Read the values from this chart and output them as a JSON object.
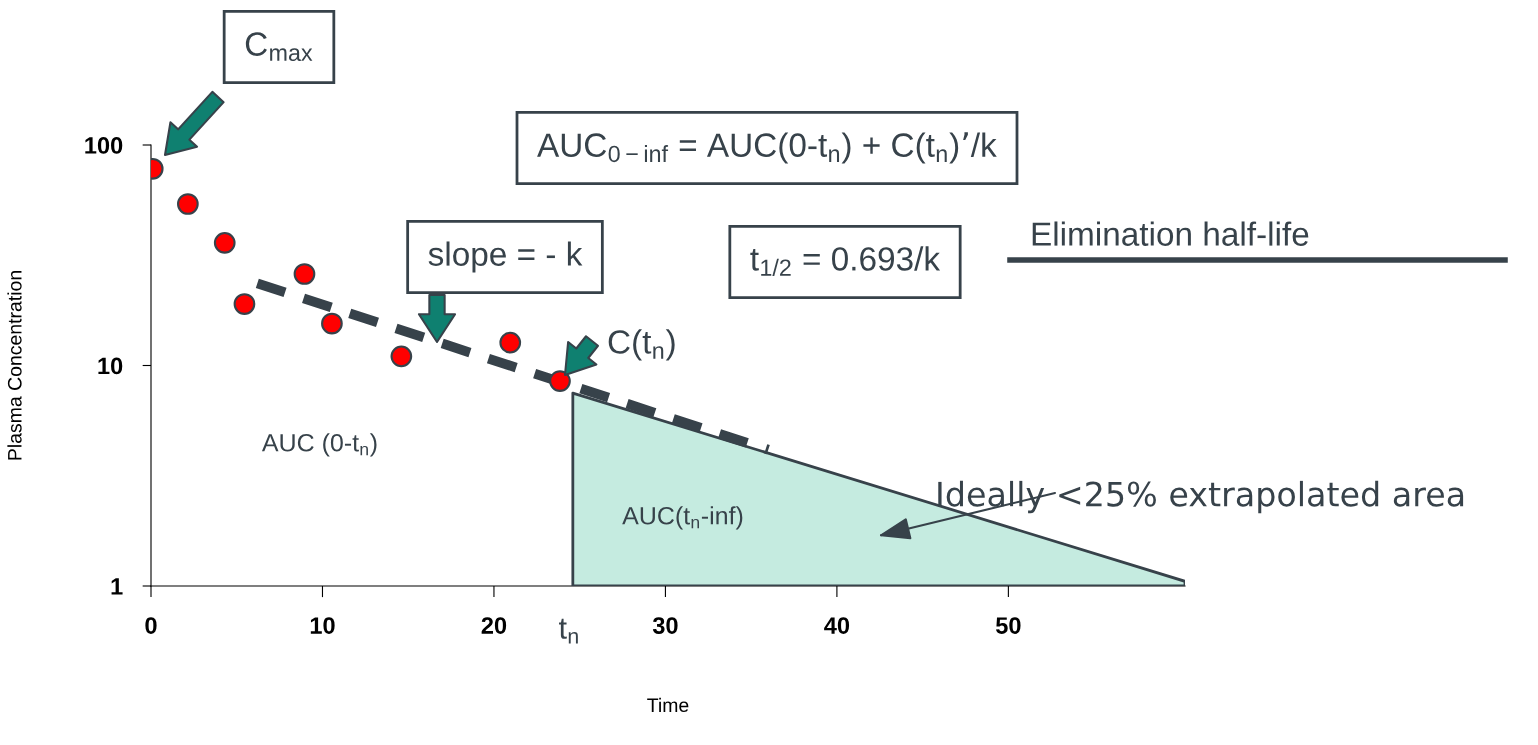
{
  "chart_data": {
    "type": "scatter",
    "xlabel": "Time",
    "ylabel": "Plasma Concentration",
    "xlim": [
      0,
      60.3
    ],
    "ylim": [
      1,
      100
    ],
    "log": "y",
    "xticks": [
      0,
      10,
      20,
      {
        "value": 24.4,
        "label": "t$_{n}$"
      },
      30,
      40,
      50
    ],
    "yticks": [
      1,
      10,
      100
    ],
    "grid": false,
    "series": [
      {
        "color": "#ff0000",
        "marker": "circle",
        "x": [
          0.1,
          2.15,
          4.3,
          5.45,
          8.95,
          10.55,
          14.6,
          20.95,
          23.85
        ],
        "values": [
          78,
          54,
          36,
          19,
          26,
          15.5,
          11,
          12.7,
          8.5
        ]
      },
      {
        "type": "line",
        "color": "#37424a",
        "line_style": "dashed",
        "x": [
          6.2,
          36
        ],
        "values": [
          23.6,
          4.15
        ]
      },
      {
        "type": "area",
        "color": "#c5ebe0",
        "x": [
          24.6,
          60.3
        ],
        "values": [
          7.5,
          1.05
        ]
      }
    ],
    "annotations": [
      "C$_{max}$",
      "AUC$_{0−inf}$ = AUC(0-t$_{n}$) + C(t$_{n}$)’/k",
      "slope = - k",
      "t$_{1/2}$ = 0.693/k",
      "Elimination half-life",
      "C(t$_{n}$)",
      "AUC (0-t$_{n}$)",
      "AUC(t$_{n}$-inf)",
      "Ideally <25% extrapolated area"
    ]
  }
}
